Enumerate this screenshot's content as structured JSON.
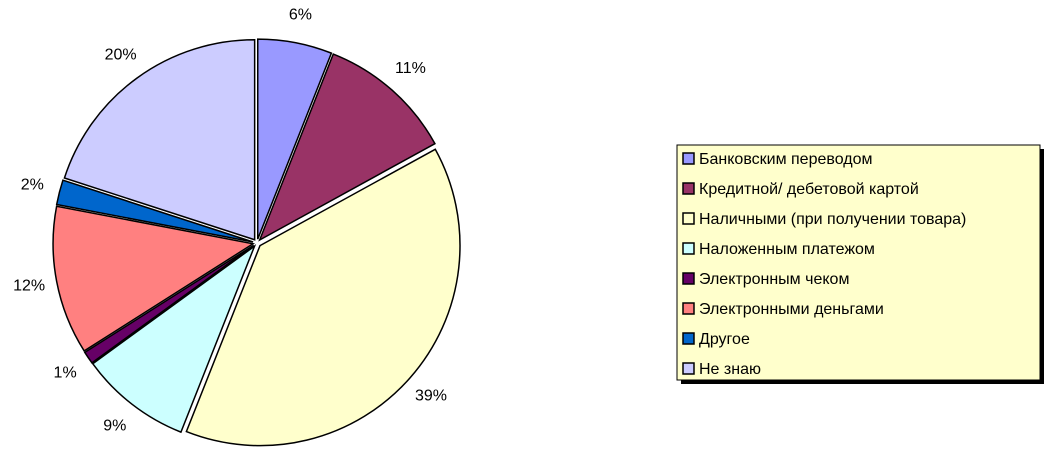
{
  "chart_data": {
    "type": "pie",
    "categories": [
      "Банковским переводом",
      "Кредитной/ дебетовой картой",
      "Наличными (при получении товара)",
      "Наложенным платежом",
      "Электронным чеком",
      "Электронными деньгами",
      "Другое",
      "Не знаю"
    ],
    "values": [
      6,
      11,
      39,
      9,
      1,
      12,
      2,
      20
    ],
    "value_labels": [
      "6%",
      "11%",
      "39%",
      "9%",
      "1%",
      "12%",
      "2%",
      "20%"
    ],
    "colors": [
      "#9999ff",
      "#993366",
      "#ffffcc",
      "#ccffff",
      "#660066",
      "#ff8080",
      "#0066cc",
      "#ccccff"
    ],
    "legend": "right"
  }
}
